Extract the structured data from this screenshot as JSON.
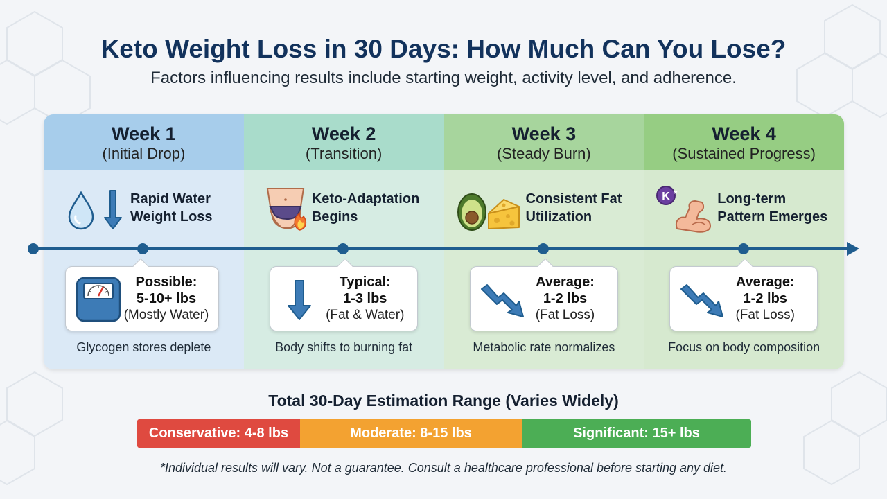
{
  "title": "Keto Weight Loss in 30 Days: How Much Can You Lose?",
  "subtitle": "Factors influencing results include starting weight, activity level, and adherence.",
  "weeks": [
    {
      "title": "Week 1",
      "subtitle": "(Initial Drop)",
      "feature_line1": "Rapid Water",
      "feature_line2": "Weight Loss",
      "card_label": "Possible:",
      "card_value": "5-10+ lbs",
      "card_note": "(Mostly Water)",
      "footnote": "Glycogen stores deplete"
    },
    {
      "title": "Week 2",
      "subtitle": "(Transition)",
      "feature_line1": "Keto-Adaptation",
      "feature_line2": "Begins",
      "card_label": "Typical:",
      "card_value": "1-3 lbs",
      "card_note": "(Fat & Water)",
      "footnote": "Body shifts to burning fat"
    },
    {
      "title": "Week 3",
      "subtitle": "(Steady Burn)",
      "feature_line1": "Consistent Fat",
      "feature_line2": "Utilization",
      "card_label": "Average:",
      "card_value": "1-2 lbs",
      "card_note": "(Fat Loss)",
      "footnote": "Metabolic rate normalizes"
    },
    {
      "title": "Week 4",
      "subtitle": "(Sustained Progress)",
      "feature_line1": "Long-term",
      "feature_line2": "Pattern Emerges",
      "card_label": "Average:",
      "card_value": "1-2 lbs",
      "card_note": "(Fat Loss)",
      "footnote": "Focus on body composition"
    }
  ],
  "range": {
    "title": "Total 30-Day Estimation Range (Varies Widely)",
    "segments": [
      {
        "label": "Conservative: 4-8 lbs",
        "color": "#df4a40"
      },
      {
        "label": "Moderate: 8-15 lbs",
        "color": "#f3a231"
      },
      {
        "label": "Significant: 15+ lbs",
        "color": "#4cae55"
      }
    ]
  },
  "potassium_badge": "K",
  "disclaimer": "*Individual results will vary. Not a guarantee. Consult a healthcare professional before starting any diet.",
  "colors": {
    "title": "#12325c",
    "timeline": "#1f5d8f",
    "week1": "#a7cdeb",
    "week2": "#a9dccb",
    "week3": "#a7d59d",
    "week4": "#96cd83"
  }
}
